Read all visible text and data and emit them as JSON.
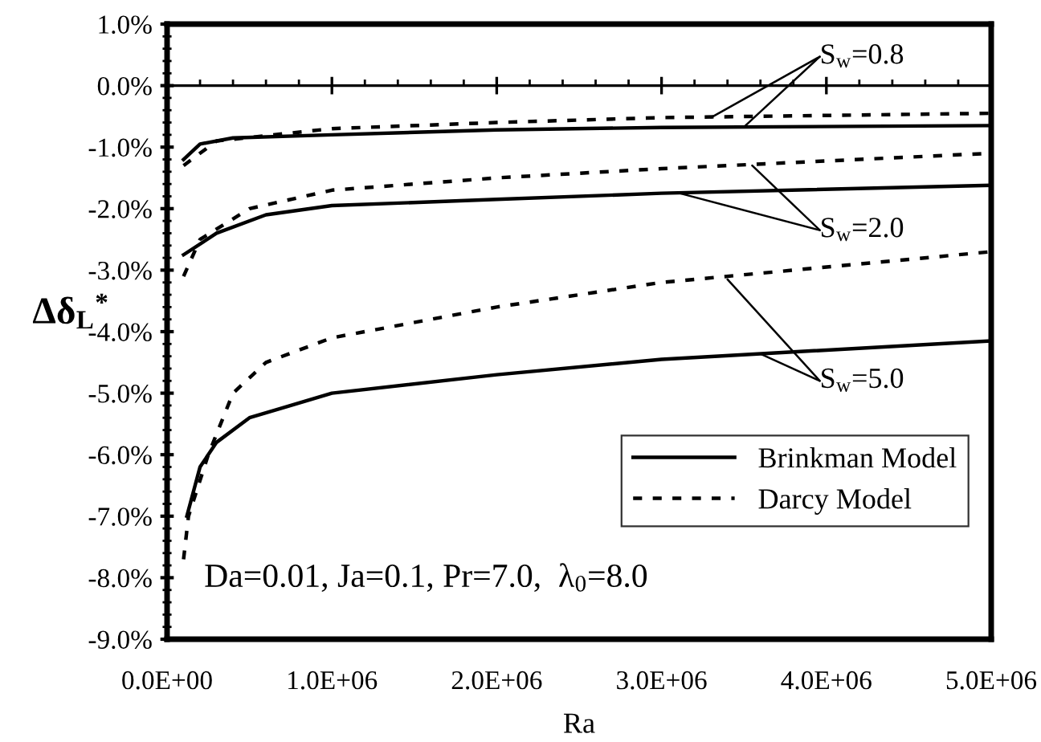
{
  "chart_data": {
    "type": "line",
    "xlabel": "Ra",
    "ylabel": "Δδ$_{L}$$^{*}$",
    "xlim": [
      0,
      5000000
    ],
    "ylim": [
      -9,
      1
    ],
    "xticks": [
      {
        "value": 0,
        "label": "0.0E+00"
      },
      {
        "value": 1000000,
        "label": "1.0E+06"
      },
      {
        "value": 2000000,
        "label": "2.0E+06"
      },
      {
        "value": 3000000,
        "label": "3.0E+06"
      },
      {
        "value": 4000000,
        "label": "4.0E+06"
      },
      {
        "value": 5000000,
        "label": "5.0E+06"
      }
    ],
    "yticks": [
      {
        "value": -9,
        "label": "-9.0%"
      },
      {
        "value": -8,
        "label": "-8.0%"
      },
      {
        "value": -7,
        "label": "-7.0%"
      },
      {
        "value": -6,
        "label": "-6.0%"
      },
      {
        "value": -5,
        "label": "-5.0%"
      },
      {
        "value": -4,
        "label": "-4.0%"
      },
      {
        "value": -3,
        "label": "-3.0%"
      },
      {
        "value": -2,
        "label": "-2.0%"
      },
      {
        "value": -1,
        "label": "-1.0%"
      },
      {
        "value": 0,
        "label": "0.0%"
      },
      {
        "value": 1,
        "label": "1.0%"
      }
    ],
    "legend": "bottom right",
    "grid": false,
    "ref_lines": [
      {
        "axis": "y",
        "value": 0,
        "color": "#000000"
      }
    ],
    "series": [
      {
        "name": "Brinkman Model",
        "color": "#000000",
        "line_style": "solid",
        "x": [
          100000,
          200000,
          400000,
          1000000,
          2000000,
          3000000,
          5000000
        ],
        "values": [
          -1.2,
          -0.95,
          -0.85,
          -0.8,
          -0.72,
          -0.68,
          -0.65
        ]
      },
      {
        "name": "Darcy Model",
        "color": "#000000",
        "line_style": "dashed",
        "x": [
          100000,
          300000,
          1000000,
          2000000,
          3000000,
          5000000
        ],
        "values": [
          -1.3,
          -0.9,
          -0.7,
          -0.6,
          -0.52,
          -0.45
        ]
      },
      {
        "color": "#000000",
        "line_style": "solid",
        "x": [
          100000,
          300000,
          600000,
          1000000,
          2000000,
          3000000,
          5000000
        ],
        "values": [
          -2.75,
          -2.4,
          -2.1,
          -1.95,
          -1.85,
          -1.75,
          -1.62
        ]
      },
      {
        "color": "#000000",
        "line_style": "dashed",
        "x": [
          100000,
          200000,
          500000,
          1000000,
          2000000,
          3000000,
          5000000
        ],
        "values": [
          -3.1,
          -2.5,
          -2.0,
          -1.7,
          -1.5,
          -1.35,
          -1.1
        ]
      },
      {
        "color": "#000000",
        "line_style": "solid",
        "x": [
          120000,
          200000,
          300000,
          500000,
          1000000,
          2000000,
          3000000,
          5000000
        ],
        "values": [
          -7.0,
          -6.2,
          -5.8,
          -5.4,
          -5.0,
          -4.7,
          -4.45,
          -4.15
        ]
      },
      {
        "color": "#000000",
        "line_style": "dashed",
        "x": [
          100000,
          130000,
          250000,
          400000,
          600000,
          1000000,
          2000000,
          3000000,
          5000000
        ],
        "values": [
          -7.7,
          -7.0,
          -6.0,
          -5.0,
          -4.5,
          -4.1,
          -3.6,
          -3.2,
          -2.7
        ]
      }
    ],
    "annotations": [
      {
        "text": "S$_{w}$=0.8",
        "x": 3300000,
        "y": -0.52
      },
      {
        "text": "S$_{w}$=2.0",
        "x": 3550000,
        "y": -1.3
      },
      {
        "text": "S$_{w}$=5.0",
        "x": 3400000,
        "y": -3.15
      },
      "Da=0.01, Ja=0.1, Pr=7.0,  λ$_{0}$=8.0"
    ]
  }
}
